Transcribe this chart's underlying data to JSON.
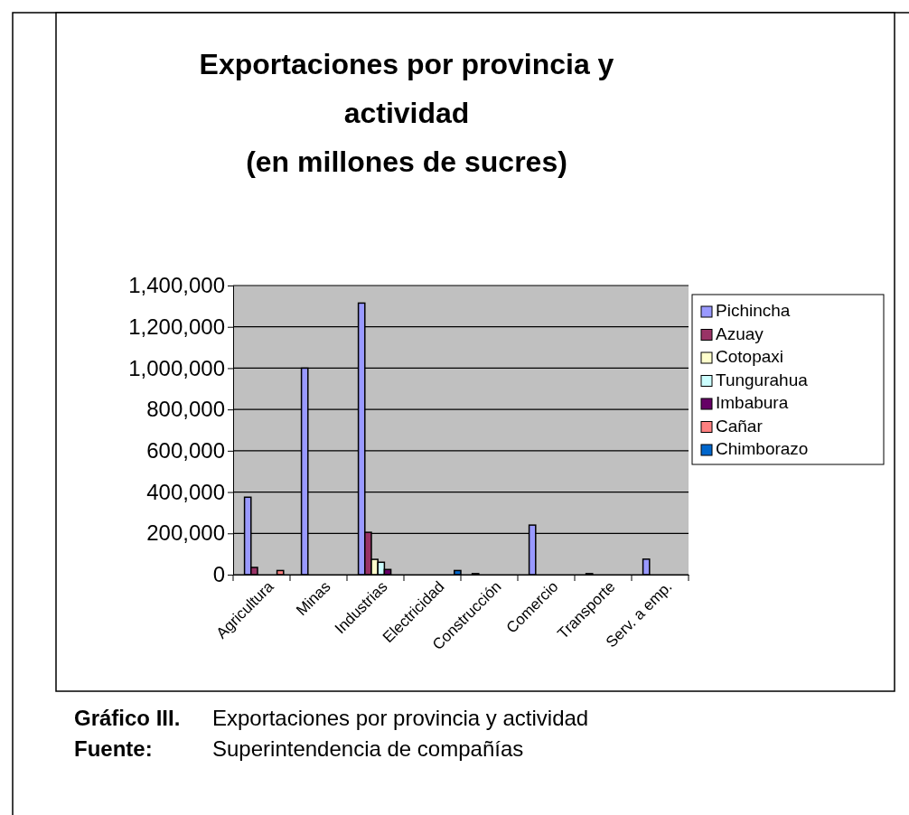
{
  "chart_data": {
    "type": "bar",
    "title": "Exportaciones por provincia y actividad\n(en millones de sucres)",
    "categories": [
      "Agricultura",
      "Minas",
      "Industrias",
      "Electricidad",
      "Construcción",
      "Comercio",
      "Transporte",
      "Serv. a emp."
    ],
    "series": [
      {
        "name": "Pichincha",
        "color": "#9999ff",
        "values": [
          375000,
          1000000,
          1315000,
          null,
          5000,
          240000,
          5000,
          75000
        ]
      },
      {
        "name": "Azuay",
        "color": "#993366",
        "values": [
          35000,
          null,
          205000,
          null,
          null,
          null,
          null,
          null
        ]
      },
      {
        "name": "Cotopaxi",
        "color": "#ffffcc",
        "values": [
          null,
          null,
          74000,
          null,
          null,
          null,
          null,
          null
        ]
      },
      {
        "name": "Tungurahua",
        "color": "#ccffff",
        "values": [
          null,
          null,
          60000,
          null,
          null,
          null,
          null,
          null
        ]
      },
      {
        "name": "Imbabura",
        "color": "#660066",
        "values": [
          null,
          null,
          25000,
          null,
          null,
          null,
          null,
          null
        ]
      },
      {
        "name": "Cañar",
        "color": "#ff8080",
        "values": [
          20000,
          null,
          null,
          null,
          null,
          null,
          null,
          null
        ]
      },
      {
        "name": "Chimborazo",
        "color": "#0066cc",
        "values": [
          null,
          null,
          null,
          20000,
          null,
          null,
          null,
          null
        ]
      }
    ],
    "ylim": [
      0,
      1400000
    ],
    "yticks": [
      {
        "value": 0,
        "label": "0"
      },
      {
        "value": 200000,
        "label": "200,000"
      },
      {
        "value": 400000,
        "label": "400,000"
      },
      {
        "value": 600000,
        "label": "600,000"
      },
      {
        "value": 800000,
        "label": "800,000"
      },
      {
        "value": 1000000,
        "label": "1,000,000"
      },
      {
        "value": 1200000,
        "label": "1,200,000"
      },
      {
        "value": 1400000,
        "label": "1,400,000"
      }
    ],
    "grid": "y",
    "legend": "right",
    "annotations": [
      "Gráfico III.",
      "Exportaciones por provincia y actividad",
      "Fuente:",
      "Superintendencia de compañías"
    ]
  }
}
